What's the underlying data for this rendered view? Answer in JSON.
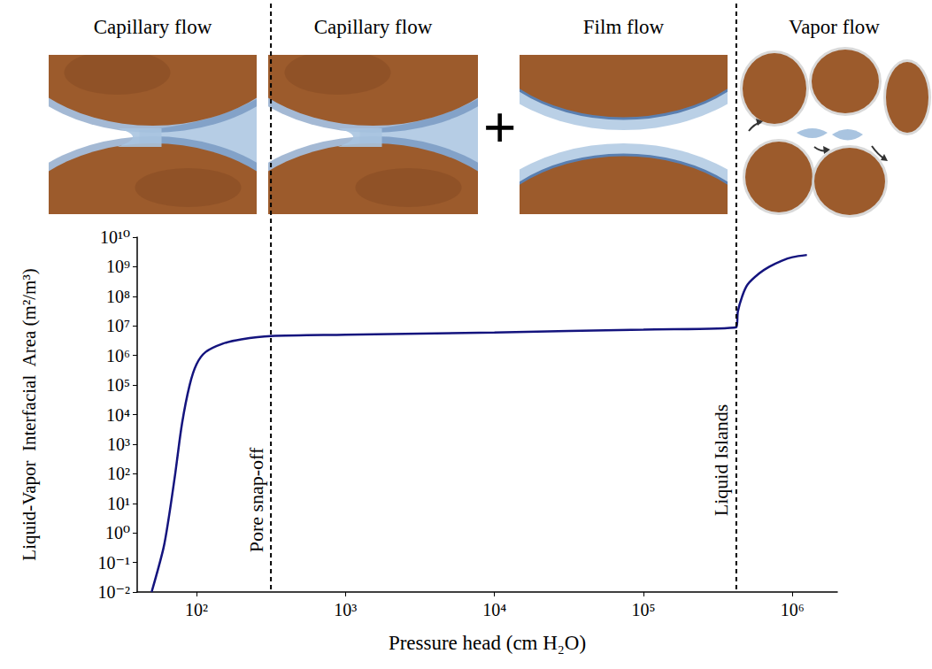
{
  "panels": {
    "titles": [
      "Capillary flow",
      "Capillary flow",
      "Film flow",
      "Vapor flow"
    ],
    "joiner": "+"
  },
  "chart_data": {
    "type": "line",
    "log": true,
    "grid": false,
    "x_label": "Pressure head (cm H₂O)",
    "y_label": "Liquid-Vapor  Interfacial  Area (m²/m³)",
    "xlim": [
      40,
      2000000
    ],
    "xticks": [
      {
        "value": 100,
        "label": "10²"
      },
      {
        "value": 1000,
        "label": "10³"
      },
      {
        "value": 10000,
        "label": "10⁴"
      },
      {
        "value": 100000,
        "label": "10⁵"
      },
      {
        "value": 1000000,
        "label": "10⁶"
      }
    ],
    "ylim": [
      0.01,
      10000000000
    ],
    "yticks": [
      {
        "value": 0.01,
        "label": "10⁻²"
      },
      {
        "value": 0.1,
        "label": "10⁻¹"
      },
      {
        "value": 1,
        "label": "10⁰"
      },
      {
        "value": 10,
        "label": "10¹"
      },
      {
        "value": 100,
        "label": "10²"
      },
      {
        "value": 1000,
        "label": "10³"
      },
      {
        "value": 10000,
        "label": "10⁴"
      },
      {
        "value": 100000,
        "label": "10⁵"
      },
      {
        "value": 1000000,
        "label": "10⁶"
      },
      {
        "value": 10000000,
        "label": "10⁷"
      },
      {
        "value": 100000000,
        "label": "10⁸"
      },
      {
        "value": 1000000000,
        "label": "10⁹"
      },
      {
        "value": 10000000000,
        "label": "10¹⁰"
      }
    ],
    "x": [
      50,
      60,
      65,
      72,
      80,
      90,
      100,
      115,
      150,
      200,
      316,
      1000,
      10000,
      100000,
      420000,
      430000,
      460000,
      500000,
      600000,
      700000,
      850000,
      1000000,
      1250000
    ],
    "values": [
      0.01,
      0.3,
      3,
      100,
      5000,
      100000,
      500000,
      1300000,
      2500000,
      3500000,
      4500000,
      5000000,
      6000000,
      7500000,
      9000000,
      30000000,
      100000000,
      250000000,
      600000000,
      1000000000,
      1600000000,
      2100000000,
      2500000000
    ],
    "color": "#14147e",
    "annotations": [
      {
        "x": 316,
        "label": "Pore snap-off"
      },
      {
        "x": 420000,
        "label": "Liquid Islands"
      }
    ]
  }
}
